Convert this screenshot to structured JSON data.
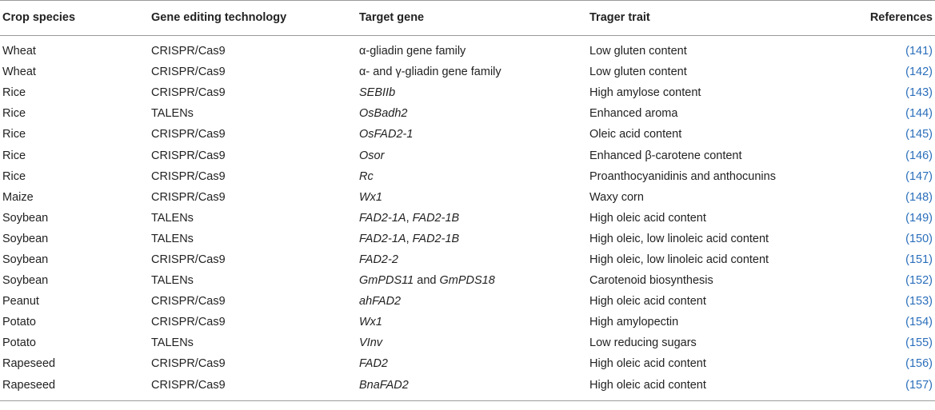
{
  "table": {
    "headers": [
      "Crop species",
      "Gene editing technology",
      "Target gene",
      "Trager trait",
      "References"
    ],
    "rows": [
      {
        "crop": "Wheat",
        "tech": "CRISPR/Cas9",
        "gene_parts": [
          {
            "t": "α-gliadin gene family",
            "i": false
          }
        ],
        "trait": "Low gluten content",
        "ref": "(141)"
      },
      {
        "crop": "Wheat",
        "tech": "CRISPR/Cas9",
        "gene_parts": [
          {
            "t": "α- and γ-gliadin gene family",
            "i": false
          }
        ],
        "trait": "Low gluten content",
        "ref": "(142)"
      },
      {
        "crop": "Rice",
        "tech": "CRISPR/Cas9",
        "gene_parts": [
          {
            "t": "SEBIIb",
            "i": true
          }
        ],
        "trait": "High amylose content",
        "ref": "(143)"
      },
      {
        "crop": "Rice",
        "tech": "TALENs",
        "gene_parts": [
          {
            "t": "OsBadh2",
            "i": true
          }
        ],
        "trait": "Enhanced aroma",
        "ref": "(144)"
      },
      {
        "crop": "Rice",
        "tech": "CRISPR/Cas9",
        "gene_parts": [
          {
            "t": "OsFAD2-1",
            "i": true
          }
        ],
        "trait": "Oleic acid content",
        "ref": "(145)"
      },
      {
        "crop": "Rice",
        "tech": "CRISPR/Cas9",
        "gene_parts": [
          {
            "t": "Osor",
            "i": true
          }
        ],
        "trait": "Enhanced β-carotene content",
        "ref": "(146)"
      },
      {
        "crop": "Rice",
        "tech": "CRISPR/Cas9",
        "gene_parts": [
          {
            "t": "Rc",
            "i": true
          }
        ],
        "trait": "Proanthocyanidinis and anthocunins",
        "ref": "(147)"
      },
      {
        "crop": "Maize",
        "tech": "CRISPR/Cas9",
        "gene_parts": [
          {
            "t": "Wx1",
            "i": true
          }
        ],
        "trait": "Waxy corn",
        "ref": "(148)"
      },
      {
        "crop": "Soybean",
        "tech": "TALENs",
        "gene_parts": [
          {
            "t": "FAD2-1A",
            "i": true
          },
          {
            "t": ", ",
            "i": false
          },
          {
            "t": "FAD2-1B",
            "i": true
          }
        ],
        "trait": "High oleic acid content",
        "ref": "(149)"
      },
      {
        "crop": "Soybean",
        "tech": "TALENs",
        "gene_parts": [
          {
            "t": "FAD2-1A",
            "i": true
          },
          {
            "t": ", ",
            "i": false
          },
          {
            "t": "FAD2-1B",
            "i": true
          }
        ],
        "trait": "High oleic, low linoleic acid content",
        "ref": "(150)"
      },
      {
        "crop": "Soybean",
        "tech": "CRISPR/Cas9",
        "gene_parts": [
          {
            "t": "FAD2-2",
            "i": true
          }
        ],
        "trait": "High oleic, low linoleic acid content",
        "ref": "(151)"
      },
      {
        "crop": "Soybean",
        "tech": "TALENs",
        "gene_parts": [
          {
            "t": "GmPDS11",
            "i": true
          },
          {
            "t": " and ",
            "i": false
          },
          {
            "t": "GmPDS18",
            "i": true
          }
        ],
        "trait": "Carotenoid biosynthesis",
        "ref": "(152)"
      },
      {
        "crop": "Peanut",
        "tech": "CRISPR/Cas9",
        "gene_parts": [
          {
            "t": "ahFAD2",
            "i": true
          }
        ],
        "trait": "High oleic acid content",
        "ref": "(153)"
      },
      {
        "crop": "Potato",
        "tech": "CRISPR/Cas9",
        "gene_parts": [
          {
            "t": "Wx1",
            "i": true
          }
        ],
        "trait": "High amylopectin",
        "ref": "(154)"
      },
      {
        "crop": "Potato",
        "tech": "TALENs",
        "gene_parts": [
          {
            "t": "VInv",
            "i": true
          }
        ],
        "trait": "Low reducing sugars",
        "ref": "(155)"
      },
      {
        "crop": "Rapeseed",
        "tech": "CRISPR/Cas9",
        "gene_parts": [
          {
            "t": "FAD2",
            "i": true
          }
        ],
        "trait": "High oleic acid content",
        "ref": "(156)"
      },
      {
        "crop": "Rapeseed",
        "tech": "CRISPR/Cas9",
        "gene_parts": [
          {
            "t": "BnaFAD2",
            "i": true
          }
        ],
        "trait": "High oleic acid content",
        "ref": "(157)"
      }
    ]
  }
}
